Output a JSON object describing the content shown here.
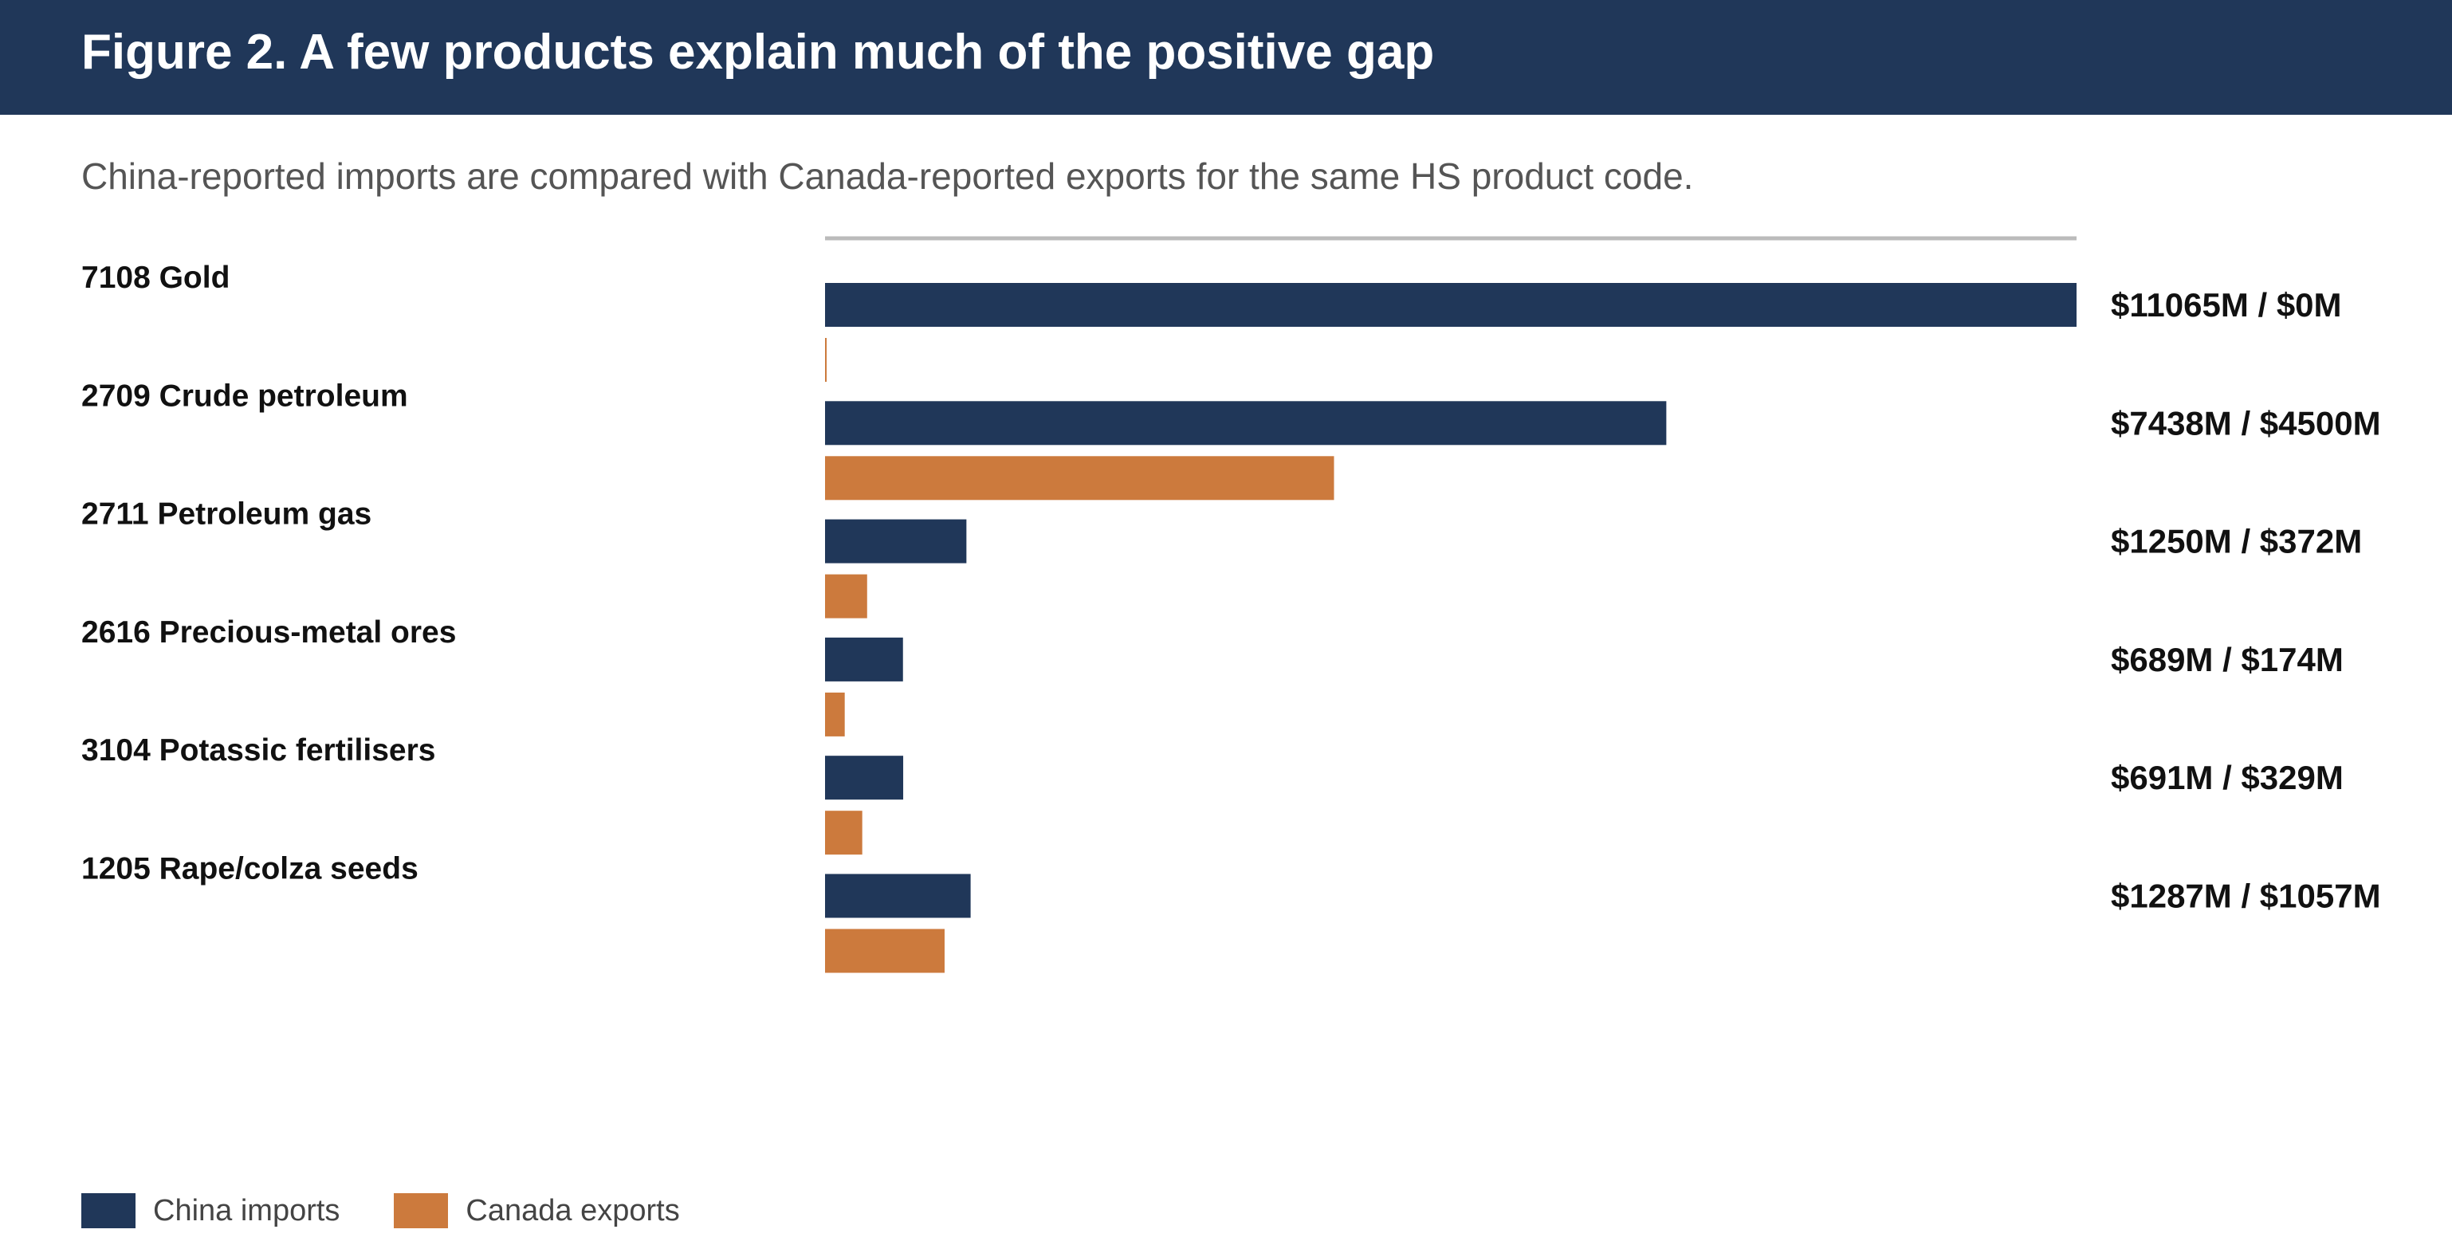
{
  "title": "Figure 2. A few products explain much of the positive gap",
  "subtitle": "China-reported imports are compared with Canada-reported exports for the same HS product code.",
  "colors": {
    "header_bg": "#203759",
    "china": "#203759",
    "canada": "#CC7A3D",
    "axis_line": "#BBBBBB"
  },
  "legend": {
    "china_label": "China imports",
    "canada_label": "Canada exports"
  },
  "chart_data": {
    "type": "bar",
    "orientation": "horizontal",
    "categories": [
      "7108 Gold",
      "2709 Crude petroleum",
      "2711 Petroleum gas",
      "2616 Precious-metal ores",
      "3104 Potassic fertilisers",
      "1205 Rape/colza seeds"
    ],
    "series": [
      {
        "name": "China imports",
        "values": [
          11065,
          7438,
          1250,
          689,
          691,
          1287
        ]
      },
      {
        "name": "Canada exports",
        "values": [
          0,
          4500,
          372,
          174,
          329,
          1057
        ]
      }
    ],
    "data_labels": [
      "$11065M / $0M",
      "$7438M / $4500M",
      "$1250M / $372M",
      "$689M / $174M",
      "$691M / $329M",
      "$1287M / $1057M"
    ],
    "xlim": [
      0,
      11065
    ],
    "legend_position": "bottom-left"
  }
}
